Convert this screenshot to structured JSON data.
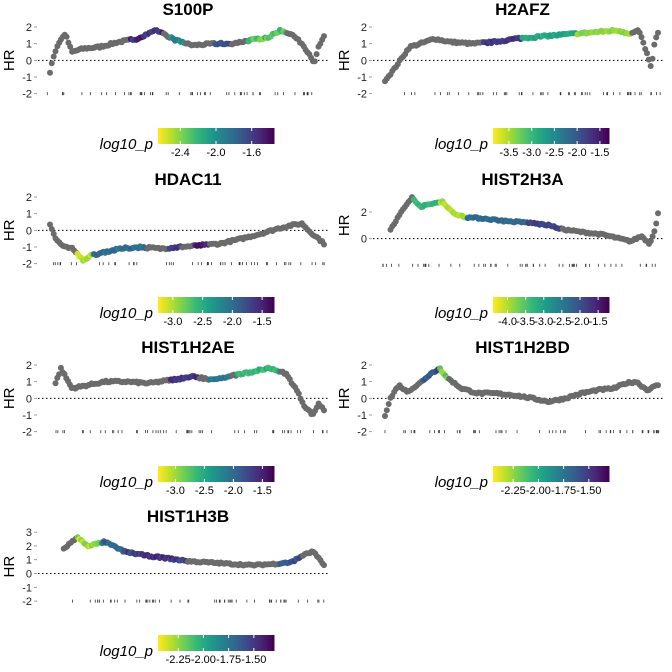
{
  "figure": {
    "ylabel": "HR",
    "colorbar_title": "log10_p",
    "colormap": [
      "#fde725",
      "#b5de2b",
      "#6ece58",
      "#35b779",
      "#1f9e89",
      "#26828e",
      "#31688e",
      "#3e4989",
      "#482878",
      "#440154"
    ],
    "nonsig_color": "#6b6b6b"
  },
  "chart_data": [
    {
      "type": "scatter",
      "title": "S100P",
      "ylabel": "HR",
      "yticks": [
        -2,
        -1,
        0,
        1,
        2
      ],
      "ylim": [
        -2.5,
        2.3
      ],
      "rug_y": -2,
      "colorbar": {
        "title": "log10_p",
        "ticks": [
          -2.4,
          -2.0,
          -1.6
        ],
        "tick_labels": [
          "-2.4",
          "-2.0",
          "-1.6"
        ],
        "range": [
          -2.65,
          -1.35
        ]
      },
      "anchors": [
        [
          0,
          -0.7
        ],
        [
          0.01,
          0.1
        ],
        [
          0.03,
          1.0
        ],
        [
          0.055,
          1.6
        ],
        [
          0.08,
          0.5
        ],
        [
          0.12,
          0.7
        ],
        [
          0.18,
          0.8
        ],
        [
          0.25,
          1.1
        ],
        [
          0.32,
          1.3
        ],
        [
          0.39,
          1.8
        ],
        [
          0.46,
          1.2
        ],
        [
          0.52,
          0.9
        ],
        [
          0.6,
          1.0
        ],
        [
          0.66,
          1.0
        ],
        [
          0.73,
          1.2
        ],
        [
          0.8,
          1.4
        ],
        [
          0.84,
          1.8
        ],
        [
          0.88,
          1.6
        ],
        [
          0.92,
          1.0
        ],
        [
          0.95,
          0.3
        ],
        [
          0.965,
          -0.2
        ],
        [
          0.98,
          0.8
        ],
        [
          1,
          1.4
        ]
      ],
      "sig_segments": [
        [
          0.29,
          0.41,
          -1.5
        ],
        [
          0.44,
          0.49,
          -2.0
        ],
        [
          0.6,
          0.66,
          -1.7
        ],
        [
          0.72,
          0.86,
          -2.3
        ]
      ]
    },
    {
      "type": "scatter",
      "title": "H2AFZ",
      "ylabel": "HR",
      "yticks": [
        -2,
        -1,
        0,
        1,
        2
      ],
      "ylim": [
        -2.5,
        2.3
      ],
      "rug_y": -2,
      "colorbar": {
        "title": "log10_p",
        "ticks": [
          -3.5,
          -3.0,
          -2.5,
          -2.0,
          -1.5
        ],
        "tick_labels": [
          "-3.5",
          "-3.0",
          "-2.5",
          "-2.0",
          "-1.5"
        ],
        "range": [
          -3.85,
          -1.3
        ]
      },
      "anchors": [
        [
          0,
          -1.2
        ],
        [
          0.03,
          -0.6
        ],
        [
          0.06,
          0.1
        ],
        [
          0.09,
          0.8
        ],
        [
          0.13,
          1.0
        ],
        [
          0.18,
          1.3
        ],
        [
          0.24,
          1.1
        ],
        [
          0.32,
          1.0
        ],
        [
          0.4,
          1.1
        ],
        [
          0.48,
          1.3
        ],
        [
          0.55,
          1.4
        ],
        [
          0.62,
          1.5
        ],
        [
          0.7,
          1.6
        ],
        [
          0.78,
          1.7
        ],
        [
          0.85,
          1.8
        ],
        [
          0.9,
          1.6
        ],
        [
          0.93,
          1.8
        ],
        [
          0.96,
          0.4
        ],
        [
          0.975,
          -0.5
        ],
        [
          0.99,
          1.3
        ],
        [
          1,
          1.6
        ]
      ],
      "sig_segments": [
        [
          0.36,
          0.5,
          -1.7
        ],
        [
          0.5,
          0.7,
          -2.8
        ],
        [
          0.7,
          0.9,
          -3.4
        ]
      ]
    },
    {
      "type": "scatter",
      "title": "HDAC11",
      "ylabel": "HR",
      "yticks": [
        -2,
        -1,
        0,
        1,
        2
      ],
      "ylim": [
        -2.5,
        2.3
      ],
      "rug_y": -2,
      "colorbar": {
        "title": "log10_p",
        "ticks": [
          -3.0,
          -2.5,
          -2.0,
          -1.5
        ],
        "tick_labels": [
          "-3.0",
          "-2.5",
          "-2.0",
          "-1.5"
        ],
        "range": [
          -3.25,
          -1.3
        ]
      },
      "anchors": [
        [
          0,
          0.4
        ],
        [
          0.02,
          -0.5
        ],
        [
          0.05,
          -1.0
        ],
        [
          0.08,
          -1.1
        ],
        [
          0.1,
          -1.4
        ],
        [
          0.12,
          -1.8
        ],
        [
          0.15,
          -1.5
        ],
        [
          0.2,
          -1.3
        ],
        [
          0.26,
          -1.1
        ],
        [
          0.33,
          -1.0
        ],
        [
          0.4,
          -1.1
        ],
        [
          0.48,
          -1.0
        ],
        [
          0.55,
          -0.9
        ],
        [
          0.62,
          -0.8
        ],
        [
          0.7,
          -0.5
        ],
        [
          0.77,
          -0.2
        ],
        [
          0.83,
          0.1
        ],
        [
          0.88,
          0.3
        ],
        [
          0.92,
          0.4
        ],
        [
          0.95,
          -0.1
        ],
        [
          0.98,
          -0.5
        ],
        [
          1,
          -0.8
        ]
      ],
      "sig_segments": [
        [
          0.1,
          0.16,
          -3.0
        ],
        [
          0.16,
          0.35,
          -2.0
        ],
        [
          0.43,
          0.48,
          -1.6
        ],
        [
          0.53,
          0.58,
          -1.5
        ]
      ]
    },
    {
      "type": "scatter",
      "title": "HIST2H3A",
      "ylabel": "HR",
      "yticks": [
        0,
        2
      ],
      "ylim": [
        -2.5,
        3.5
      ],
      "rug_y": -2,
      "colorbar": {
        "title": "log10_p",
        "ticks": [
          -4.0,
          -3.5,
          -3.0,
          -2.5,
          -2.0,
          -1.5
        ],
        "tick_labels": [
          "-4.0",
          "-3.5",
          "-3.0",
          "-2.5",
          "-2.0",
          "-1.5"
        ],
        "range": [
          -4.4,
          -1.2
        ]
      },
      "anchors": [
        [
          0.02,
          0.7
        ],
        [
          0.06,
          2.0
        ],
        [
          0.1,
          3.1
        ],
        [
          0.13,
          2.4
        ],
        [
          0.17,
          2.6
        ],
        [
          0.21,
          2.8
        ],
        [
          0.25,
          1.9
        ],
        [
          0.3,
          1.6
        ],
        [
          0.37,
          1.5
        ],
        [
          0.45,
          1.3
        ],
        [
          0.53,
          1.2
        ],
        [
          0.6,
          1.0
        ],
        [
          0.65,
          0.7
        ],
        [
          0.72,
          0.5
        ],
        [
          0.8,
          0.3
        ],
        [
          0.86,
          0.0
        ],
        [
          0.9,
          -0.2
        ],
        [
          0.94,
          0.2
        ],
        [
          0.97,
          -0.4
        ],
        [
          0.99,
          0.8
        ],
        [
          1,
          1.9
        ]
      ],
      "sig_segments": [
        [
          0.1,
          0.2,
          -3.3
        ],
        [
          0.2,
          0.3,
          -4.0
        ],
        [
          0.3,
          0.52,
          -2.3
        ],
        [
          0.52,
          0.65,
          -1.8
        ]
      ]
    },
    {
      "type": "scatter",
      "title": "HIST1H2AE",
      "ylabel": "HR",
      "yticks": [
        -2,
        -1,
        0,
        1,
        2
      ],
      "ylim": [
        -2.5,
        2.3
      ],
      "rug_y": -2,
      "colorbar": {
        "title": "log10_p",
        "ticks": [
          -3.0,
          -2.5,
          -2.0,
          -1.5
        ],
        "tick_labels": [
          "-3.0",
          "-2.5",
          "-2.0",
          "-1.5"
        ],
        "range": [
          -3.3,
          -1.3
        ]
      },
      "anchors": [
        [
          0.02,
          0.9
        ],
        [
          0.04,
          1.8
        ],
        [
          0.08,
          0.6
        ],
        [
          0.14,
          0.8
        ],
        [
          0.2,
          1.0
        ],
        [
          0.28,
          1.0
        ],
        [
          0.36,
          0.9
        ],
        [
          0.44,
          1.1
        ],
        [
          0.52,
          1.3
        ],
        [
          0.6,
          1.1
        ],
        [
          0.68,
          1.4
        ],
        [
          0.74,
          1.6
        ],
        [
          0.8,
          1.8
        ],
        [
          0.86,
          1.5
        ],
        [
          0.9,
          0.5
        ],
        [
          0.93,
          -0.5
        ],
        [
          0.96,
          -1.0
        ],
        [
          0.98,
          -0.3
        ],
        [
          1,
          -0.7
        ]
      ],
      "sig_segments": [
        [
          0.44,
          0.54,
          -1.6
        ],
        [
          0.58,
          0.66,
          -2.1
        ],
        [
          0.68,
          0.84,
          -2.6
        ]
      ]
    },
    {
      "type": "scatter",
      "title": "HIST1H2BD",
      "ylabel": "HR",
      "yticks": [
        -2,
        -1,
        0,
        1,
        2
      ],
      "ylim": [
        -2.5,
        2.3
      ],
      "rug_y": -2,
      "colorbar": {
        "title": "log10_p",
        "ticks": [
          -2.25,
          -2.0,
          -1.75,
          -1.5
        ],
        "tick_labels": [
          "-2.25",
          "-2.00",
          "-1.75",
          "-1.50"
        ],
        "range": [
          -2.45,
          -1.3
        ]
      },
      "anchors": [
        [
          0,
          -1.0
        ],
        [
          0.02,
          0.0
        ],
        [
          0.05,
          0.8
        ],
        [
          0.08,
          0.4
        ],
        [
          0.12,
          0.8
        ],
        [
          0.16,
          1.4
        ],
        [
          0.2,
          1.8
        ],
        [
          0.23,
          1.2
        ],
        [
          0.28,
          0.6
        ],
        [
          0.34,
          0.3
        ],
        [
          0.4,
          0.3
        ],
        [
          0.47,
          0.2
        ],
        [
          0.54,
          0.0
        ],
        [
          0.6,
          -0.2
        ],
        [
          0.66,
          0.0
        ],
        [
          0.72,
          0.3
        ],
        [
          0.78,
          0.5
        ],
        [
          0.84,
          0.6
        ],
        [
          0.88,
          0.9
        ],
        [
          0.92,
          1.0
        ],
        [
          0.96,
          0.5
        ],
        [
          1,
          0.8
        ]
      ],
      "sig_segments": [
        [
          0.14,
          0.2,
          -1.6
        ],
        [
          0.2,
          0.23,
          -2.2
        ]
      ]
    },
    {
      "type": "scatter",
      "title": "HIST1H3B",
      "ylabel": "HR",
      "yticks": [
        -2,
        -1,
        0,
        1,
        2,
        3
      ],
      "ylim": [
        -2.5,
        3.3
      ],
      "rug_y": -2,
      "colorbar": {
        "title": "log10_p",
        "ticks": [
          -2.25,
          -2.0,
          -1.75,
          -1.5
        ],
        "tick_labels": [
          "-2.25",
          "-2.00",
          "-1.75",
          "-1.50"
        ],
        "range": [
          -2.45,
          -1.3
        ]
      },
      "anchors": [
        [
          0.05,
          1.8
        ],
        [
          0.1,
          2.6
        ],
        [
          0.14,
          2.0
        ],
        [
          0.2,
          2.3
        ],
        [
          0.27,
          1.6
        ],
        [
          0.35,
          1.3
        ],
        [
          0.43,
          1.1
        ],
        [
          0.5,
          0.9
        ],
        [
          0.58,
          0.8
        ],
        [
          0.66,
          0.7
        ],
        [
          0.74,
          0.6
        ],
        [
          0.82,
          0.7
        ],
        [
          0.88,
          0.8
        ],
        [
          0.92,
          1.3
        ],
        [
          0.96,
          1.6
        ],
        [
          1,
          0.6
        ]
      ],
      "sig_segments": [
        [
          0.1,
          0.19,
          -2.3
        ],
        [
          0.19,
          0.27,
          -1.7
        ],
        [
          0.27,
          0.5,
          -1.5
        ],
        [
          0.84,
          0.92,
          -1.6
        ]
      ]
    }
  ]
}
